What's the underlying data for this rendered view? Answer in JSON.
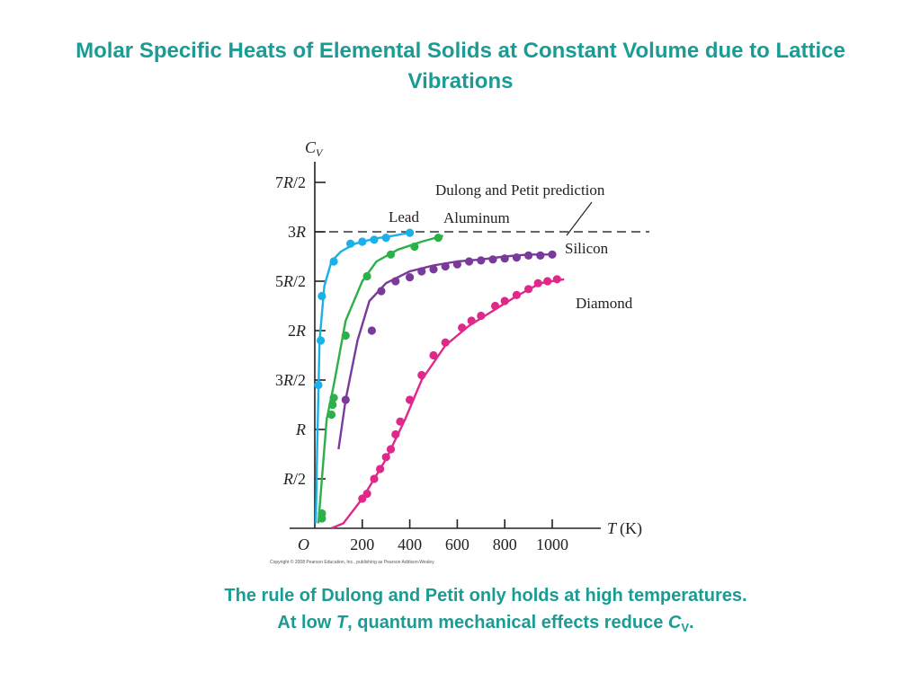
{
  "title": "Molar Specific Heats of Elemental Solids at Constant Volume due to Lattice Vibrations",
  "caption": {
    "line1": "The rule of Dulong and Petit only holds at high temperatures.",
    "line2_a": "At low ",
    "line2_t": "T",
    "line2_b": ", quantum mechanical effects reduce ",
    "line2_c": "C",
    "line2_sub": "V",
    "line2_end": "."
  },
  "copyright": "Copyright © 2008 Pearson Education, Inc., publishing as Pearson Addison-Wesley.",
  "chart_data": {
    "type": "line",
    "ylabel_main": "C",
    "ylabel_sub": "V",
    "xlabel_var": "T",
    "xlabel_unit": "(K)",
    "origin_label": "O",
    "xlim": [
      0,
      1200
    ],
    "ylim": [
      0,
      3.8
    ],
    "x_ticks": [
      200,
      400,
      600,
      800,
      1000
    ],
    "y_ticks": [
      {
        "value": 0.5,
        "label_pre": "R",
        "label_post": "2"
      },
      {
        "value": 1.0,
        "label_pre": "R",
        "label_post": ""
      },
      {
        "value": 1.5,
        "label_pre": "3R",
        "label_post": "2"
      },
      {
        "value": 2.0,
        "label_pre": "2R",
        "label_post": ""
      },
      {
        "value": 2.5,
        "label_pre": "5R",
        "label_post": "2"
      },
      {
        "value": 3.0,
        "label_pre": "3R",
        "label_post": ""
      },
      {
        "value": 3.5,
        "label_pre": "7R",
        "label_post": "2"
      }
    ],
    "y_unit": "R",
    "reference": {
      "label": "Dulong and Petit prediction",
      "value": 3.0
    },
    "series": [
      {
        "name": "Lead",
        "color": "#1ab0e8",
        "curve": [
          [
            4,
            0.05
          ],
          [
            10,
            0.8
          ],
          [
            20,
            1.9
          ],
          [
            40,
            2.45
          ],
          [
            70,
            2.7
          ],
          [
            110,
            2.8
          ],
          [
            170,
            2.88
          ],
          [
            250,
            2.93
          ],
          [
            330,
            2.96
          ],
          [
            400,
            2.99
          ]
        ],
        "points": [
          [
            15,
            1.45
          ],
          [
            25,
            1.9
          ],
          [
            30,
            2.35
          ],
          [
            80,
            2.7
          ],
          [
            150,
            2.88
          ],
          [
            200,
            2.9
          ],
          [
            250,
            2.92
          ],
          [
            300,
            2.94
          ],
          [
            400,
            2.99
          ]
        ]
      },
      {
        "name": "Aluminum",
        "color": "#2cb04a",
        "curve": [
          [
            15,
            0.05
          ],
          [
            30,
            0.5
          ],
          [
            50,
            1.1
          ],
          [
            80,
            1.45
          ],
          [
            130,
            2.1
          ],
          [
            200,
            2.5
          ],
          [
            260,
            2.7
          ],
          [
            350,
            2.82
          ],
          [
            450,
            2.9
          ],
          [
            540,
            2.96
          ]
        ],
        "points": [
          [
            30,
            0.1
          ],
          [
            30,
            0.15
          ],
          [
            70,
            1.15
          ],
          [
            75,
            1.25
          ],
          [
            80,
            1.32
          ],
          [
            130,
            1.95
          ],
          [
            220,
            2.55
          ],
          [
            320,
            2.77
          ],
          [
            420,
            2.85
          ],
          [
            520,
            2.94
          ]
        ]
      },
      {
        "name": "Silicon",
        "color": "#7a3a9a",
        "curve": [
          [
            100,
            0.8
          ],
          [
            130,
            1.3
          ],
          [
            180,
            1.9
          ],
          [
            230,
            2.3
          ],
          [
            300,
            2.48
          ],
          [
            400,
            2.6
          ],
          [
            500,
            2.66
          ],
          [
            600,
            2.7
          ],
          [
            700,
            2.72
          ],
          [
            800,
            2.75
          ],
          [
            900,
            2.77
          ],
          [
            1000,
            2.77
          ]
        ],
        "points": [
          [
            130,
            1.3
          ],
          [
            240,
            2.0
          ],
          [
            280,
            2.4
          ],
          [
            340,
            2.5
          ],
          [
            400,
            2.54
          ],
          [
            450,
            2.6
          ],
          [
            500,
            2.62
          ],
          [
            550,
            2.65
          ],
          [
            600,
            2.67
          ],
          [
            650,
            2.7
          ],
          [
            700,
            2.71
          ],
          [
            750,
            2.72
          ],
          [
            800,
            2.73
          ],
          [
            850,
            2.74
          ],
          [
            900,
            2.76
          ],
          [
            950,
            2.76
          ],
          [
            1000,
            2.77
          ]
        ]
      },
      {
        "name": "Diamond",
        "color": "#e0288a",
        "curve": [
          [
            70,
            0.0
          ],
          [
            120,
            0.05
          ],
          [
            200,
            0.3
          ],
          [
            300,
            0.7
          ],
          [
            380,
            1.1
          ],
          [
            450,
            1.5
          ],
          [
            550,
            1.85
          ],
          [
            650,
            2.05
          ],
          [
            750,
            2.2
          ],
          [
            850,
            2.35
          ],
          [
            950,
            2.48
          ],
          [
            1050,
            2.52
          ]
        ],
        "points": [
          [
            200,
            0.3
          ],
          [
            220,
            0.35
          ],
          [
            250,
            0.5
          ],
          [
            275,
            0.6
          ],
          [
            300,
            0.72
          ],
          [
            320,
            0.8
          ],
          [
            340,
            0.95
          ],
          [
            360,
            1.08
          ],
          [
            400,
            1.3
          ],
          [
            450,
            1.55
          ],
          [
            500,
            1.75
          ],
          [
            550,
            1.88
          ],
          [
            620,
            2.03
          ],
          [
            660,
            2.1
          ],
          [
            700,
            2.15
          ],
          [
            760,
            2.25
          ],
          [
            800,
            2.3
          ],
          [
            850,
            2.36
          ],
          [
            900,
            2.42
          ],
          [
            940,
            2.48
          ],
          [
            980,
            2.5
          ],
          [
            1020,
            2.52
          ]
        ]
      }
    ]
  }
}
